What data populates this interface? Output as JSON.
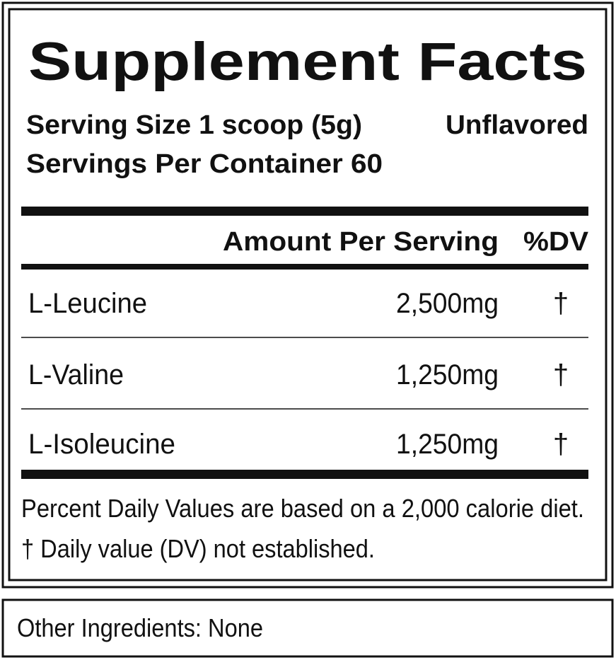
{
  "header": {
    "title": "Supplement Facts",
    "serving_size": "Serving Size 1 scoop (5g)",
    "flavor": "Unflavored",
    "servings_per_container": "Servings Per Container 60"
  },
  "table": {
    "columns": [
      "Amount Per Serving",
      "%DV"
    ],
    "rows": [
      [
        "L-Leucine",
        "2,500mg",
        "†"
      ],
      [
        "L-Valine",
        "1,250mg",
        "†"
      ],
      [
        "L-Isoleucine",
        "1,250mg",
        "†"
      ]
    ]
  },
  "footnotes": [
    "Percent Daily Values are based on a 2,000 calorie diet.",
    "† Daily value (DV) not established."
  ],
  "other_ingredients": "Other Ingredients: None"
}
